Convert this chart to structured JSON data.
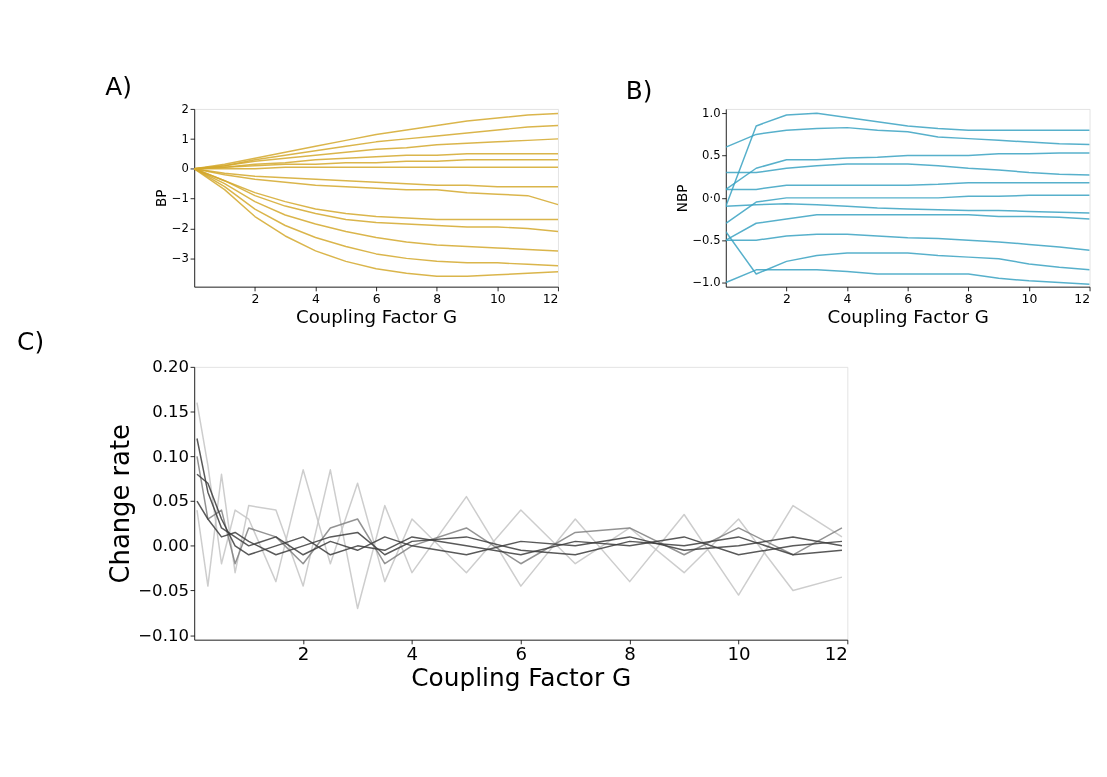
{
  "chart_data": [
    {
      "type": "line",
      "title": "A)",
      "xlabel": "Coupling Factor G",
      "ylabel": "BP",
      "xlim": [
        0,
        12
      ],
      "ylim": [
        -3.95,
        2
      ],
      "xticks": [
        2,
        4,
        6,
        8,
        10,
        12
      ],
      "yticks": [
        {
          "value": -3,
          "label": "−3"
        },
        {
          "value": -2,
          "label": "−2"
        },
        {
          "value": -1,
          "label": "−1"
        },
        0,
        1,
        2
      ],
      "grid": false,
      "legend": false,
      "x": [
        0,
        1,
        2,
        3,
        4,
        5,
        6,
        7,
        8,
        9,
        10,
        11,
        12
      ],
      "series": [
        {
          "color": "#d4a82c",
          "values": [
            0,
            0.15,
            0.35,
            0.55,
            0.75,
            0.95,
            1.15,
            1.3,
            1.45,
            1.6,
            1.7,
            1.8,
            1.85
          ]
        },
        {
          "color": "#d4a82c",
          "values": [
            0,
            0.1,
            0.3,
            0.45,
            0.6,
            0.75,
            0.9,
            1.0,
            1.1,
            1.2,
            1.3,
            1.4,
            1.45
          ]
        },
        {
          "color": "#d4a82c",
          "values": [
            0,
            0.1,
            0.25,
            0.35,
            0.45,
            0.55,
            0.65,
            0.7,
            0.8,
            0.85,
            0.9,
            0.95,
            1.0
          ]
        },
        {
          "color": "#d4a82c",
          "values": [
            0,
            0.05,
            0.15,
            0.2,
            0.3,
            0.35,
            0.4,
            0.45,
            0.45,
            0.5,
            0.5,
            0.5,
            0.5
          ]
        },
        {
          "color": "#d4a82c",
          "values": [
            0,
            0.05,
            0.1,
            0.15,
            0.15,
            0.2,
            0.2,
            0.25,
            0.25,
            0.3,
            0.3,
            0.3,
            0.3
          ]
        },
        {
          "color": "#d4a82c",
          "values": [
            0,
            0,
            0,
            0.05,
            0.05,
            0.05,
            0.05,
            0.05,
            0.05,
            0.05,
            0.05,
            0.05,
            0.05
          ]
        },
        {
          "color": "#d4a82c",
          "values": [
            0,
            -0.15,
            -0.25,
            -0.3,
            -0.35,
            -0.4,
            -0.45,
            -0.5,
            -0.55,
            -0.55,
            -0.6,
            -0.6,
            -0.6
          ]
        },
        {
          "color": "#d4a82c",
          "values": [
            0,
            -0.2,
            -0.35,
            -0.45,
            -0.55,
            -0.6,
            -0.65,
            -0.7,
            -0.7,
            -0.8,
            -0.85,
            -0.9,
            -1.2
          ]
        },
        {
          "color": "#d4a82c",
          "values": [
            0,
            -0.4,
            -0.8,
            -1.1,
            -1.35,
            -1.5,
            -1.6,
            -1.65,
            -1.7,
            -1.7,
            -1.7,
            -1.7,
            -1.7
          ]
        },
        {
          "color": "#d4a82c",
          "values": [
            0,
            -0.4,
            -0.9,
            -1.25,
            -1.5,
            -1.7,
            -1.8,
            -1.85,
            -1.9,
            -1.95,
            -1.95,
            -2.0,
            -2.1
          ]
        },
        {
          "color": "#d4a82c",
          "values": [
            0,
            -0.5,
            -1.1,
            -1.55,
            -1.85,
            -2.1,
            -2.3,
            -2.45,
            -2.55,
            -2.6,
            -2.65,
            -2.7,
            -2.75
          ]
        },
        {
          "color": "#d4a82c",
          "values": [
            0,
            -0.6,
            -1.35,
            -1.9,
            -2.3,
            -2.6,
            -2.85,
            -3.0,
            -3.1,
            -3.15,
            -3.15,
            -3.2,
            -3.25
          ]
        },
        {
          "color": "#d4a82c",
          "values": [
            0,
            -0.7,
            -1.6,
            -2.25,
            -2.75,
            -3.1,
            -3.35,
            -3.5,
            -3.6,
            -3.6,
            -3.55,
            -3.5,
            -3.45
          ]
        }
      ]
    },
    {
      "type": "line",
      "title": "B)",
      "xlabel": "Coupling Factor G",
      "ylabel": "NBP",
      "xlim": [
        0,
        12
      ],
      "ylim": [
        -1.05,
        1.05
      ],
      "xticks": [
        2,
        4,
        6,
        8,
        10,
        12
      ],
      "yticks": [
        {
          "value": -1,
          "label": "−1.0"
        },
        {
          "value": -0.5,
          "label": "−0.5"
        },
        {
          "value": 0,
          "label": "0·0"
        },
        0.5,
        {
          "value": 1,
          "label": "1.0"
        }
      ],
      "grid": false,
      "legend": false,
      "x": [
        0,
        1,
        2,
        3,
        4,
        5,
        6,
        7,
        8,
        9,
        10,
        11,
        12
      ],
      "series": [
        {
          "color": "#3aa2c2",
          "values": [
            -0.1,
            0.85,
            0.98,
            1.0,
            0.95,
            0.9,
            0.85,
            0.82,
            0.8,
            0.8,
            0.8,
            0.8,
            0.8
          ]
        },
        {
          "color": "#3aa2c2",
          "values": [
            0.6,
            0.75,
            0.8,
            0.82,
            0.83,
            0.8,
            0.78,
            0.72,
            0.7,
            0.68,
            0.66,
            0.64,
            0.63
          ]
        },
        {
          "color": "#3aa2c2",
          "values": [
            0.1,
            0.35,
            0.45,
            0.45,
            0.47,
            0.48,
            0.5,
            0.5,
            0.5,
            0.52,
            0.52,
            0.53,
            0.53
          ]
        },
        {
          "color": "#3aa2c2",
          "values": [
            0.3,
            0.3,
            0.35,
            0.38,
            0.4,
            0.4,
            0.4,
            0.38,
            0.35,
            0.33,
            0.3,
            0.28,
            0.27
          ]
        },
        {
          "color": "#3aa2c2",
          "values": [
            0.1,
            0.1,
            0.15,
            0.15,
            0.15,
            0.15,
            0.15,
            0.16,
            0.18,
            0.18,
            0.18,
            0.18,
            0.18
          ]
        },
        {
          "color": "#3aa2c2",
          "values": [
            -0.3,
            -0.05,
            0.0,
            0.0,
            0.0,
            0.0,
            0.0,
            0.0,
            0.02,
            0.02,
            0.03,
            0.03,
            0.03
          ]
        },
        {
          "color": "#3aa2c2",
          "values": [
            -0.1,
            -0.08,
            -0.07,
            -0.08,
            -0.1,
            -0.12,
            -0.13,
            -0.14,
            -0.15,
            -0.15,
            -0.16,
            -0.17,
            -0.18
          ]
        },
        {
          "color": "#3aa2c2",
          "values": [
            -0.5,
            -0.3,
            -0.25,
            -0.2,
            -0.2,
            -0.2,
            -0.2,
            -0.2,
            -0.2,
            -0.22,
            -0.22,
            -0.23,
            -0.25
          ]
        },
        {
          "color": "#3aa2c2",
          "values": [
            -0.5,
            -0.5,
            -0.45,
            -0.43,
            -0.43,
            -0.45,
            -0.47,
            -0.48,
            -0.5,
            -0.52,
            -0.55,
            -0.58,
            -0.62
          ]
        },
        {
          "color": "#3aa2c2",
          "values": [
            -0.4,
            -0.9,
            -0.75,
            -0.68,
            -0.65,
            -0.65,
            -0.65,
            -0.68,
            -0.7,
            -0.72,
            -0.78,
            -0.82,
            -0.85
          ]
        },
        {
          "color": "#3aa2c2",
          "values": [
            -1.0,
            -0.85,
            -0.85,
            -0.85,
            -0.87,
            -0.9,
            -0.9,
            -0.9,
            -0.9,
            -0.95,
            -0.98,
            -1.0,
            -1.02
          ]
        }
      ]
    },
    {
      "type": "line",
      "title": "C)",
      "xlabel": "Coupling Factor G",
      "ylabel": "Change rate",
      "xlim": [
        0,
        12
      ],
      "ylim": [
        -0.105,
        0.2
      ],
      "xticks": [
        2,
        4,
        6,
        8,
        10,
        12
      ],
      "yticks": [
        {
          "value": -0.1,
          "label": "−0.10"
        },
        {
          "value": -0.05,
          "label": "−0.05"
        },
        {
          "value": 0,
          "label": "0.00"
        },
        0.05,
        {
          "value": 0.1,
          "label": "0.10"
        },
        0.15,
        {
          "value": 0.2,
          "label": "0.20"
        }
      ],
      "grid": false,
      "legend": false,
      "x": [
        0.05,
        0.25,
        0.5,
        0.75,
        1,
        1.5,
        2,
        2.5,
        3,
        3.5,
        4,
        5,
        6,
        7,
        8,
        9,
        10,
        11,
        11.9
      ],
      "series": [
        {
          "color": "#c4c4c4",
          "values": [
            0.16,
            0.09,
            -0.02,
            0.04,
            0.03,
            -0.04,
            0.085,
            -0.02,
            0.07,
            -0.04,
            0.03,
            -0.03,
            0.04,
            -0.02,
            0.02,
            -0.03,
            0.03,
            -0.05,
            -0.035
          ]
        },
        {
          "color": "#c4c4c4",
          "values": [
            0.04,
            -0.045,
            0.08,
            -0.03,
            0.045,
            0.04,
            -0.045,
            0.085,
            -0.07,
            0.045,
            -0.03,
            0.055,
            -0.045,
            0.03,
            -0.04,
            0.035,
            -0.055,
            0.045,
            0.01
          ]
        },
        {
          "color": "#808080",
          "values": [
            0.1,
            0.03,
            0.04,
            -0.02,
            0.02,
            0.01,
            -0.02,
            0.02,
            0.03,
            -0.02,
            0.0,
            0.02,
            -0.02,
            0.015,
            0.02,
            -0.01,
            0.02,
            -0.01,
            0.02
          ]
        },
        {
          "color": "#3c3c3c",
          "values": [
            0.12,
            0.06,
            0.02,
            0.01,
            0.0,
            0.01,
            -0.01,
            0.005,
            -0.005,
            0.01,
            0.0,
            -0.01,
            0.005,
            0.0,
            0.01,
            -0.005,
            0.0,
            0.01,
            0.0
          ]
        },
        {
          "color": "#3c3c3c",
          "values": [
            0.08,
            0.07,
            0.03,
            0.0,
            -0.01,
            0.0,
            0.01,
            -0.01,
            0.0,
            -0.005,
            0.01,
            0.0,
            -0.01,
            0.005,
            0.0,
            0.01,
            -0.01,
            0.0,
            0.005
          ]
        },
        {
          "color": "#3c3c3c",
          "values": [
            0.05,
            0.03,
            0.01,
            0.015,
            0.005,
            -0.01,
            0.0,
            0.01,
            0.015,
            -0.01,
            0.005,
            0.01,
            -0.005,
            -0.01,
            0.005,
            0.0,
            0.01,
            -0.01,
            -0.005
          ]
        }
      ]
    }
  ]
}
